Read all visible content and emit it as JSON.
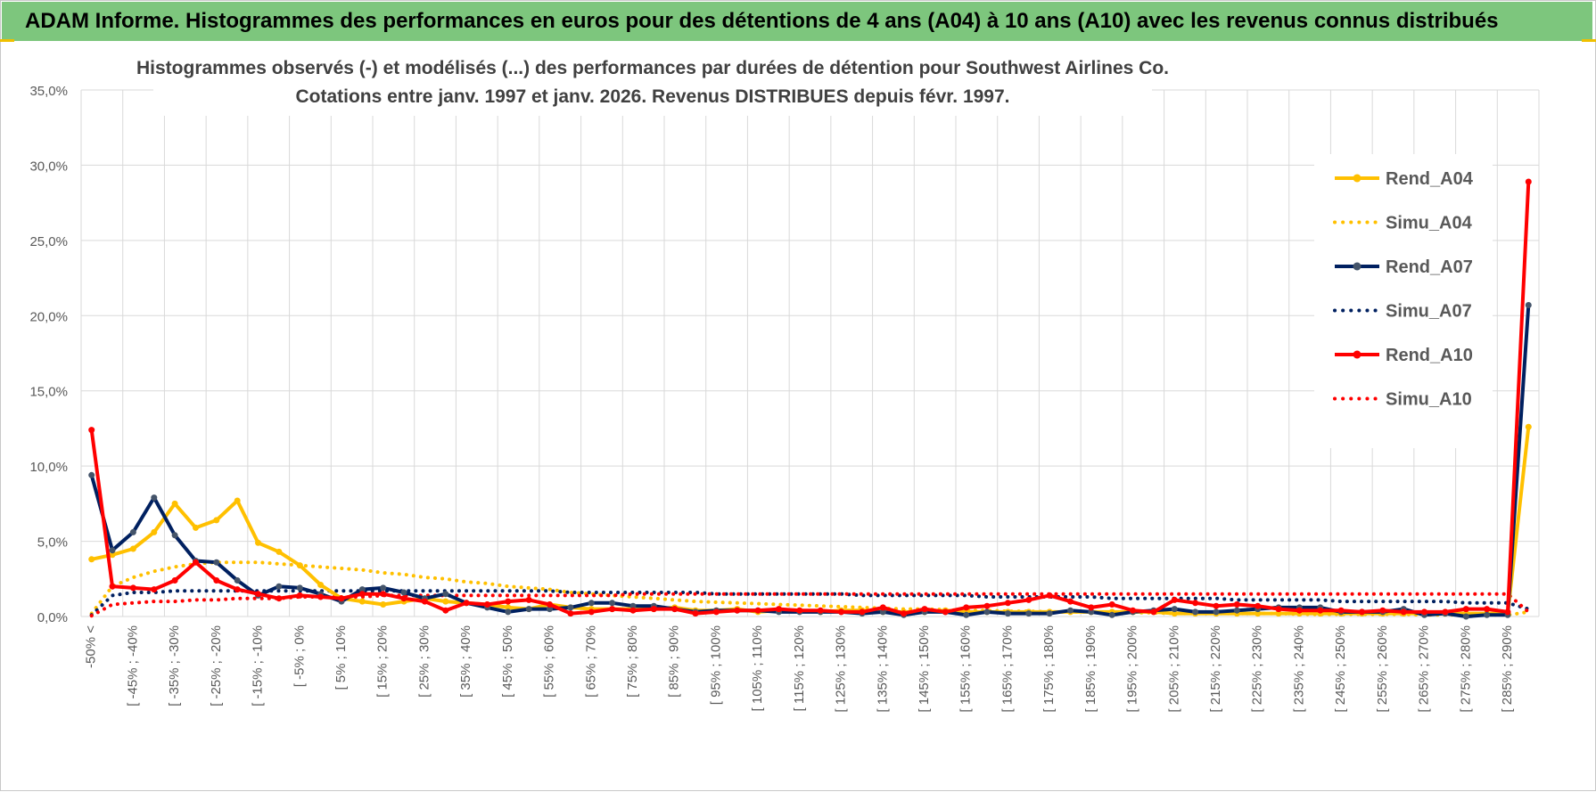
{
  "banner": {
    "title": "ADAM Informe. Histogrammes des performances en euros pour des détentions de 4 ans (A04) à 10 ans (A10) avec les revenus connus distribués"
  },
  "colors": {
    "banner_bg": "#7dc67d",
    "gold": "#ffc000",
    "navy": "#002060",
    "red": "#ff0000",
    "grid": "#d9d9d9"
  },
  "chart_data": {
    "type": "line",
    "title_line1": "Histogrammes observés (-) et modélisés (...) des performances par durées de détention pour Southwest Airlines Co.",
    "title_line2": "Cotations entre janv. 1997 et janv. 2026. Revenus DISTRIBUES depuis févr. 1997.",
    "ylim": [
      0,
      35
    ],
    "ytick_labels": [
      "0,0%",
      "5,0%",
      "10,0%",
      "15,0%",
      "20,0%",
      "25,0%",
      "30,0%",
      "35,0%"
    ],
    "grid": true,
    "legend_position": "right",
    "x_labels": [
      "-50% <",
      "[ -45% ; -40%",
      "[ -35% ; -30%",
      "[ -25% ; -20%",
      "[ -15% ; -10%",
      "[ -5% ; 0%",
      "[ 5% ; 10%",
      "[ 15% ; 20%",
      "[ 25% ; 30%",
      "[ 35% ; 40%",
      "[ 45% ; 50%",
      "[ 55% ; 60%",
      "[ 65% ; 70%",
      "[ 75% ; 80%",
      "[ 85% ; 90%",
      "[ 95% ; 100%",
      "[ 105% ; 110%",
      "[ 115% ; 120%",
      "[ 125% ; 130%",
      "[ 135% ; 140%",
      "[ 145% ; 150%",
      "[ 155% ; 160%",
      "[ 165% ; 170%",
      "[ 175% ; 180%",
      "[ 185% ; 190%",
      "[ 195% ; 200%",
      "[ 205% ; 210%",
      "[ 215% ; 220%",
      "[ 225% ; 230%",
      "[ 235% ; 240%",
      "[ 245% ; 250%",
      "[ 255% ; 260%",
      "[ 265% ; 270%",
      "[ 275% ; 280%",
      "[ 285% ; 290%"
    ],
    "n_categories": 70,
    "series": [
      {
        "name": "Rend_A04",
        "style": "solid",
        "color": "#ffc000",
        "values": [
          3.8,
          4.1,
          4.5,
          5.6,
          7.5,
          5.9,
          6.4,
          7.7,
          4.9,
          4.3,
          3.4,
          2.1,
          1.2,
          1.0,
          0.8,
          1.0,
          1.2,
          1.0,
          0.9,
          0.8,
          0.6,
          0.5,
          0.8,
          0.6,
          0.5,
          0.5,
          0.5,
          0.5,
          0.6,
          0.4,
          0.4,
          0.5,
          0.3,
          0.4,
          0.4,
          0.3,
          0.4,
          0.4,
          0.3,
          0.3,
          0.3,
          0.4,
          0.3,
          0.3,
          0.3,
          0.3,
          0.3,
          0.3,
          0.3,
          0.3,
          0.3,
          0.3,
          0.2,
          0.2,
          0.2,
          0.2,
          0.2,
          0.2,
          0.2,
          0.2,
          0.2,
          0.2,
          0.2,
          0.2,
          0.2,
          0.2,
          0.2,
          0.2,
          0.2,
          12.6
        ]
      },
      {
        "name": "Simu_A04",
        "style": "dotted",
        "color": "#ffc000",
        "values": [
          0.2,
          2.0,
          2.6,
          3.0,
          3.3,
          3.5,
          3.6,
          3.6,
          3.6,
          3.5,
          3.4,
          3.3,
          3.2,
          3.1,
          2.9,
          2.8,
          2.6,
          2.5,
          2.3,
          2.2,
          2.0,
          1.9,
          1.8,
          1.6,
          1.5,
          1.4,
          1.3,
          1.2,
          1.1,
          1.0,
          0.95,
          0.9,
          0.85,
          0.8,
          0.75,
          0.7,
          0.65,
          0.6,
          0.55,
          0.5,
          0.5,
          0.45,
          0.4,
          0.4,
          0.35,
          0.35,
          0.3,
          0.3,
          0.3,
          0.25,
          0.25,
          0.25,
          0.2,
          0.2,
          0.2,
          0.2,
          0.2,
          0.2,
          0.15,
          0.15,
          0.15,
          0.15,
          0.15,
          0.15,
          0.1,
          0.1,
          0.1,
          0.1,
          0.1,
          0.3
        ]
      },
      {
        "name": "Rend_A07",
        "style": "solid",
        "color": "#002060",
        "values": [
          9.4,
          4.4,
          5.6,
          7.9,
          5.4,
          3.7,
          3.6,
          2.4,
          1.4,
          2.0,
          1.9,
          1.5,
          1.0,
          1.8,
          1.9,
          1.6,
          1.2,
          1.5,
          0.9,
          0.6,
          0.3,
          0.5,
          0.5,
          0.6,
          0.9,
          0.9,
          0.7,
          0.7,
          0.5,
          0.3,
          0.4,
          0.4,
          0.4,
          0.3,
          0.3,
          0.3,
          0.3,
          0.2,
          0.3,
          0.1,
          0.3,
          0.3,
          0.1,
          0.3,
          0.2,
          0.2,
          0.2,
          0.4,
          0.3,
          0.1,
          0.3,
          0.4,
          0.5,
          0.3,
          0.3,
          0.4,
          0.5,
          0.6,
          0.6,
          0.6,
          0.3,
          0.3,
          0.3,
          0.5,
          0.1,
          0.2,
          0.0,
          0.1,
          0.1,
          20.7
        ]
      },
      {
        "name": "Simu_A07",
        "style": "dotted",
        "color": "#002060",
        "values": [
          0.1,
          1.4,
          1.6,
          1.6,
          1.7,
          1.7,
          1.7,
          1.7,
          1.7,
          1.7,
          1.7,
          1.7,
          1.7,
          1.7,
          1.7,
          1.7,
          1.7,
          1.7,
          1.7,
          1.7,
          1.7,
          1.7,
          1.7,
          1.6,
          1.6,
          1.6,
          1.6,
          1.6,
          1.6,
          1.6,
          1.5,
          1.5,
          1.5,
          1.5,
          1.5,
          1.5,
          1.5,
          1.4,
          1.4,
          1.4,
          1.4,
          1.4,
          1.4,
          1.3,
          1.3,
          1.3,
          1.3,
          1.3,
          1.3,
          1.2,
          1.2,
          1.2,
          1.2,
          1.2,
          1.2,
          1.1,
          1.1,
          1.1,
          1.1,
          1.1,
          1.0,
          1.0,
          1.0,
          1.0,
          1.0,
          1.0,
          0.9,
          0.9,
          0.9,
          0.5
        ]
      },
      {
        "name": "Rend_A10",
        "style": "solid",
        "color": "#ff0000",
        "values": [
          12.4,
          2.0,
          1.9,
          1.8,
          2.4,
          3.6,
          2.4,
          1.8,
          1.5,
          1.2,
          1.4,
          1.3,
          1.2,
          1.5,
          1.5,
          1.2,
          1.0,
          0.4,
          0.9,
          0.8,
          1.0,
          1.1,
          0.8,
          0.2,
          0.3,
          0.5,
          0.4,
          0.5,
          0.5,
          0.2,
          0.3,
          0.4,
          0.4,
          0.5,
          0.4,
          0.4,
          0.3,
          0.3,
          0.6,
          0.2,
          0.5,
          0.3,
          0.6,
          0.7,
          0.9,
          1.1,
          1.4,
          1.0,
          0.6,
          0.8,
          0.4,
          0.3,
          1.1,
          0.9,
          0.7,
          0.8,
          0.7,
          0.5,
          0.4,
          0.4,
          0.4,
          0.3,
          0.4,
          0.3,
          0.3,
          0.3,
          0.5,
          0.5,
          0.3,
          28.9
        ]
      },
      {
        "name": "Simu_A10",
        "style": "dotted",
        "color": "#ff0000",
        "values": [
          0.05,
          0.8,
          0.9,
          1.0,
          1.0,
          1.1,
          1.1,
          1.2,
          1.2,
          1.2,
          1.3,
          1.3,
          1.3,
          1.3,
          1.4,
          1.4,
          1.4,
          1.4,
          1.4,
          1.4,
          1.4,
          1.4,
          1.4,
          1.4,
          1.4,
          1.4,
          1.5,
          1.5,
          1.5,
          1.5,
          1.5,
          1.5,
          1.5,
          1.5,
          1.5,
          1.5,
          1.5,
          1.5,
          1.5,
          1.5,
          1.5,
          1.5,
          1.5,
          1.5,
          1.5,
          1.5,
          1.5,
          1.5,
          1.5,
          1.5,
          1.5,
          1.5,
          1.5,
          1.5,
          1.5,
          1.5,
          1.5,
          1.5,
          1.5,
          1.5,
          1.5,
          1.5,
          1.5,
          1.5,
          1.5,
          1.5,
          1.5,
          1.5,
          1.5,
          0.3
        ]
      }
    ]
  }
}
